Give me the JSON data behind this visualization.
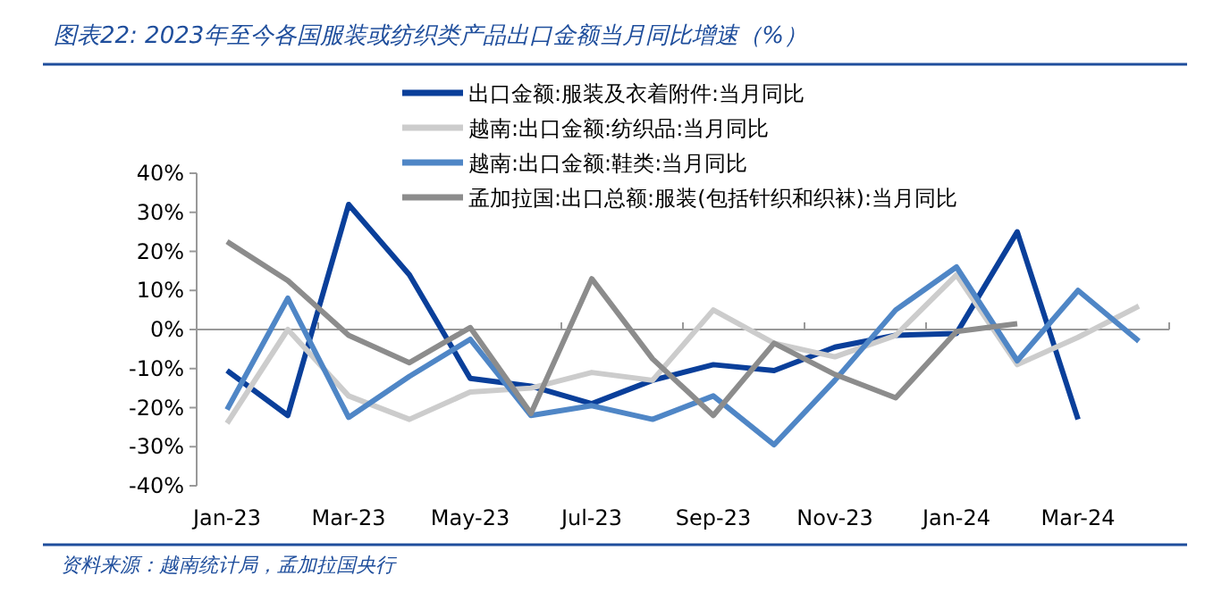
{
  "chart_data": {
    "type": "line",
    "title": "图表22: 2023年至今各国服装或纺织类产品出口金额当月同比增速（%）",
    "annotations": [
      "资料来源：越南统计局，孟加拉国央行"
    ],
    "legend": "top",
    "categories": [
      "Jan-23",
      null,
      "Mar-23",
      null,
      "May-23",
      null,
      "Jul-23",
      null,
      "Sep-23",
      null,
      "Nov-23",
      null,
      "Jan-24",
      null,
      "Mar-24",
      null
    ],
    "ylim": [
      -40,
      40
    ],
    "yticks": [
      {
        "value": -40,
        "label": "-40%"
      },
      {
        "value": -30,
        "label": "-30%"
      },
      {
        "value": -20,
        "label": "-20%"
      },
      {
        "value": -10,
        "label": "-10%"
      },
      {
        "value": 0,
        "label": "0%"
      },
      {
        "value": 10,
        "label": "10%"
      },
      {
        "value": 20,
        "label": "20%"
      },
      {
        "value": 30,
        "label": "30%"
      },
      {
        "value": 40,
        "label": "40%"
      }
    ],
    "series": [
      {
        "name": "出口金额:服装及衣着附件:当月同比",
        "color": "#0a3f9a",
        "values": [
          -10.5,
          -22,
          32,
          14,
          -12.5,
          -14.5,
          -19,
          -13,
          -9,
          -10.5,
          -4.5,
          -1.5,
          -1,
          25,
          -23,
          null
        ]
      },
      {
        "name": "越南:出口金额:纺织品:当月同比",
        "color": "#cccccc",
        "values": [
          -24,
          0,
          -17,
          -23,
          -16,
          -15,
          -11,
          -13,
          5,
          -3.5,
          -7,
          -1.5,
          14,
          -9,
          -2,
          6
        ]
      },
      {
        "name": "越南:出口金额:鞋类:当月同比",
        "color": "#4f86c6",
        "values": [
          -20.5,
          8,
          -22.5,
          -12,
          -2.5,
          -22,
          -19.5,
          -23,
          -17,
          -29.5,
          -13,
          5,
          16,
          -8,
          10,
          -3
        ]
      },
      {
        "name": "孟加拉国:出口总额:服装(包括针织和织袜):当月同比",
        "color": "#8c8c8c",
        "values": [
          22.5,
          12.5,
          -1.5,
          -8.5,
          0.5,
          -21.5,
          13,
          -7.5,
          -22,
          -3.5,
          -11.5,
          -17.5,
          -0.5,
          1.5,
          null,
          null
        ]
      }
    ]
  }
}
